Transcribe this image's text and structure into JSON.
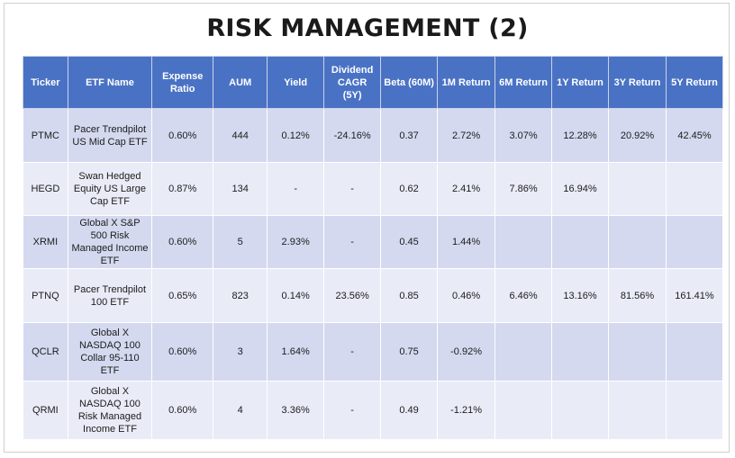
{
  "title": "RISK MANAGEMENT (2)",
  "columns": [
    "Ticker",
    "ETF Name",
    "Expense Ratio",
    "AUM",
    "Yield",
    "Dividend CAGR (5Y)",
    "Beta (60M)",
    "1M Return",
    "6M Return",
    "1Y Return",
    "3Y Return",
    "5Y Return"
  ],
  "rows": [
    [
      "PTMC",
      "Pacer Trendpilot US Mid Cap ETF",
      "0.60%",
      "444",
      "0.12%",
      "-24.16%",
      "0.37",
      "2.72%",
      "3.07%",
      "12.28%",
      "20.92%",
      "42.45%"
    ],
    [
      "HEGD",
      "Swan Hedged Equity US Large Cap ETF",
      "0.87%",
      "134",
      "-",
      "-",
      "0.62",
      "2.41%",
      "7.86%",
      "16.94%",
      "",
      ""
    ],
    [
      "XRMI",
      "Global X S&P 500 Risk Managed Income ETF",
      "0.60%",
      "5",
      "2.93%",
      "-",
      "0.45",
      "1.44%",
      "",
      "",
      "",
      ""
    ],
    [
      "PTNQ",
      "Pacer Trendpilot 100 ETF",
      "0.65%",
      "823",
      "0.14%",
      "23.56%",
      "0.85",
      "0.46%",
      "6.46%",
      "13.16%",
      "81.56%",
      "161.41%"
    ],
    [
      "QCLR",
      "Global X NASDAQ 100 Collar 95-110 ETF",
      "0.60%",
      "3",
      "1.64%",
      "-",
      "0.75",
      "-0.92%",
      "",
      "",
      "",
      ""
    ],
    [
      "QRMI",
      "Global X NASDAQ 100 Risk Managed Income ETF",
      "0.60%",
      "4",
      "3.36%",
      "-",
      "0.49",
      "-1.21%",
      "",
      "",
      "",
      ""
    ]
  ]
}
